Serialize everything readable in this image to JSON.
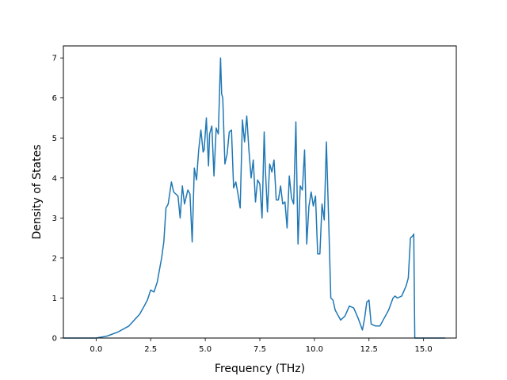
{
  "chart_data": {
    "type": "line",
    "title": "",
    "xlabel": "Frequency (THz)",
    "ylabel": "Density of States",
    "xlim": [
      -1.5,
      16.5
    ],
    "ylim": [
      0,
      7.3
    ],
    "grid": false,
    "x_ticks": [
      0.0,
      2.5,
      5.0,
      7.5,
      10.0,
      12.5,
      15.0
    ],
    "x_tick_labels": [
      "0.0",
      "2.5",
      "5.0",
      "7.5",
      "10.0",
      "12.5",
      "15.0"
    ],
    "y_ticks": [
      0,
      1,
      2,
      3,
      4,
      5,
      6,
      7
    ],
    "y_tick_labels": [
      "0",
      "1",
      "2",
      "3",
      "4",
      "5",
      "6",
      "7"
    ],
    "series": [
      {
        "color": "#1f77b4",
        "x": [
          -1.5,
          0.0,
          0.5,
          1.0,
          1.5,
          2.0,
          2.2,
          2.35,
          2.5,
          2.65,
          2.8,
          3.0,
          3.1,
          3.2,
          3.3,
          3.45,
          3.55,
          3.65,
          3.75,
          3.85,
          3.95,
          4.05,
          4.2,
          4.3,
          4.4,
          4.5,
          4.6,
          4.7,
          4.8,
          4.9,
          4.95,
          5.05,
          5.15,
          5.2,
          5.3,
          5.4,
          5.5,
          5.6,
          5.7,
          5.75,
          5.8,
          5.9,
          6.0,
          6.1,
          6.2,
          6.3,
          6.4,
          6.5,
          6.6,
          6.7,
          6.8,
          6.9,
          7.0,
          7.1,
          7.2,
          7.3,
          7.4,
          7.5,
          7.6,
          7.7,
          7.75,
          7.85,
          7.95,
          8.05,
          8.15,
          8.25,
          8.35,
          8.45,
          8.55,
          8.65,
          8.75,
          8.85,
          8.95,
          9.05,
          9.15,
          9.25,
          9.35,
          9.45,
          9.55,
          9.65,
          9.75,
          9.85,
          9.95,
          10.05,
          10.15,
          10.25,
          10.35,
          10.45,
          10.55,
          10.65,
          10.75,
          10.85,
          10.95,
          11.05,
          11.2,
          11.4,
          11.6,
          11.8,
          12.0,
          12.2,
          12.3,
          12.4,
          12.5,
          12.6,
          12.8,
          13.0,
          13.2,
          13.4,
          13.6,
          13.7,
          13.8,
          14.0,
          14.2,
          14.3,
          14.4,
          14.5,
          14.55,
          14.6,
          14.8,
          15.0,
          16.0
        ],
        "y": [
          0.0,
          0.0,
          0.05,
          0.15,
          0.3,
          0.6,
          0.8,
          0.95,
          1.2,
          1.15,
          1.4,
          2.0,
          2.4,
          3.25,
          3.35,
          3.9,
          3.65,
          3.6,
          3.55,
          3.0,
          3.8,
          3.35,
          3.7,
          3.6,
          2.4,
          4.25,
          3.95,
          4.7,
          5.2,
          4.65,
          4.7,
          5.5,
          4.3,
          5.1,
          5.3,
          4.05,
          5.25,
          5.1,
          7.0,
          6.1,
          6.0,
          4.35,
          4.6,
          5.15,
          5.2,
          3.75,
          3.9,
          3.6,
          3.25,
          5.45,
          4.9,
          5.55,
          4.7,
          4.0,
          4.45,
          3.4,
          3.95,
          3.85,
          3.0,
          5.15,
          4.25,
          3.15,
          4.35,
          4.15,
          4.45,
          3.45,
          3.45,
          3.8,
          3.35,
          3.4,
          2.75,
          4.05,
          3.5,
          3.35,
          5.4,
          2.35,
          3.8,
          3.7,
          4.7,
          2.35,
          3.3,
          3.65,
          3.3,
          3.55,
          2.1,
          2.1,
          3.35,
          2.95,
          4.9,
          3.0,
          1.0,
          0.95,
          0.7,
          0.6,
          0.45,
          0.55,
          0.8,
          0.75,
          0.5,
          0.2,
          0.5,
          0.9,
          0.95,
          0.35,
          0.3,
          0.3,
          0.5,
          0.7,
          1.0,
          1.05,
          1.0,
          1.05,
          1.3,
          1.5,
          2.5,
          2.55,
          2.6,
          0.0,
          0.0,
          0.0,
          0.0
        ]
      }
    ]
  }
}
